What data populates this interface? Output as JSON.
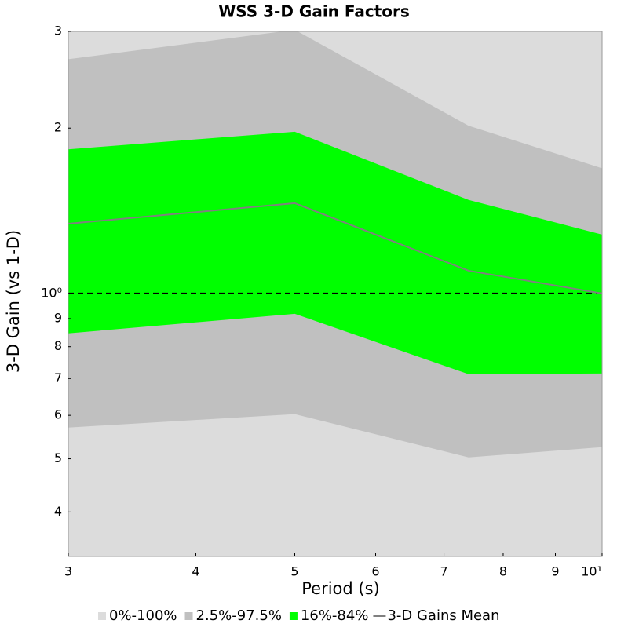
{
  "chart_data": {
    "type": "band",
    "title": "WSS 3-D Gain Factors",
    "x_label": "Period (s)",
    "y_label": "3-D Gain (vs 1-D)",
    "x": [
      3,
      5,
      7.4,
      10
    ],
    "xscale": "log",
    "yscale": "log",
    "xlim": [
      3,
      10
    ],
    "ylim": [
      0.332,
      3
    ],
    "xticks": [
      3,
      4,
      5,
      6,
      7,
      8,
      9,
      {
        "value": 10,
        "label": "10¹"
      }
    ],
    "yticks": [
      3,
      2,
      {
        "value": 1,
        "label": "10⁰"
      },
      {
        "value": 0.9,
        "label": "9"
      },
      {
        "value": 0.8,
        "label": "8"
      },
      {
        "value": 0.7,
        "label": "7"
      },
      {
        "value": 0.6,
        "label": "6"
      },
      {
        "value": 0.5,
        "label": "5"
      },
      {
        "value": 0.4,
        "label": "4"
      }
    ],
    "hline": 1,
    "legend": "bottom",
    "series": [
      {
        "name": "0%-100%",
        "color": "#dcdcdc",
        "upper": [
          3.5,
          3.5,
          3.5,
          3.5
        ],
        "lower": [
          0.3,
          0.3,
          0.3,
          0.3
        ]
      },
      {
        "name": "2.5%-97.5%",
        "color": "#c0c0c0",
        "upper": [
          2.67,
          3.02,
          2.02,
          1.69
        ],
        "lower": [
          0.57,
          0.603,
          0.503,
          0.525
        ]
      },
      {
        "name": "16%-84%",
        "color": "#00ff00",
        "upper": [
          1.83,
          1.97,
          1.48,
          1.28
        ],
        "lower": [
          0.846,
          0.918,
          0.713,
          0.715
        ]
      },
      {
        "name": "3-D Gains Mean",
        "color": "#808080",
        "values": [
          1.34,
          1.46,
          1.1,
          1.0
        ]
      }
    ]
  }
}
